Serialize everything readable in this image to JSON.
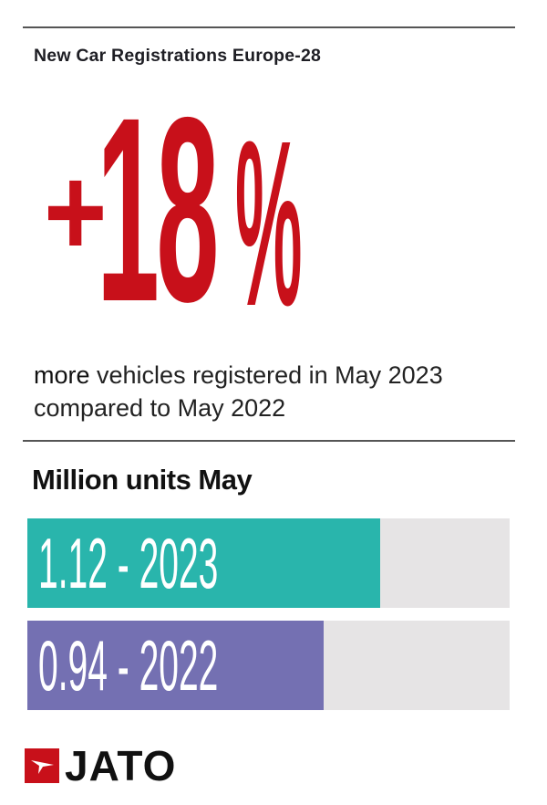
{
  "header": {
    "title": "New Car Registrations Europe-28"
  },
  "headline": {
    "plus": "+",
    "value": "18",
    "percent": "%",
    "color": "#c8101a"
  },
  "description": {
    "emphasis": "more",
    "line1_rest": " vehicles registered in May 2023",
    "line2": "compared to May 2022"
  },
  "chart_data": {
    "type": "bar",
    "orientation": "horizontal",
    "title": "Million units May",
    "categories": [
      "2023",
      "2022"
    ],
    "values": [
      1.12,
      0.94
    ],
    "labels": [
      "1.12 - 2023",
      "0.94 - 2022"
    ],
    "colors": [
      "#29b5ac",
      "#7470b2"
    ],
    "xlim": [
      0,
      1.53
    ],
    "track_color": "#e6e4e5"
  },
  "logo": {
    "text": "JATO",
    "color": "#c8101a"
  }
}
